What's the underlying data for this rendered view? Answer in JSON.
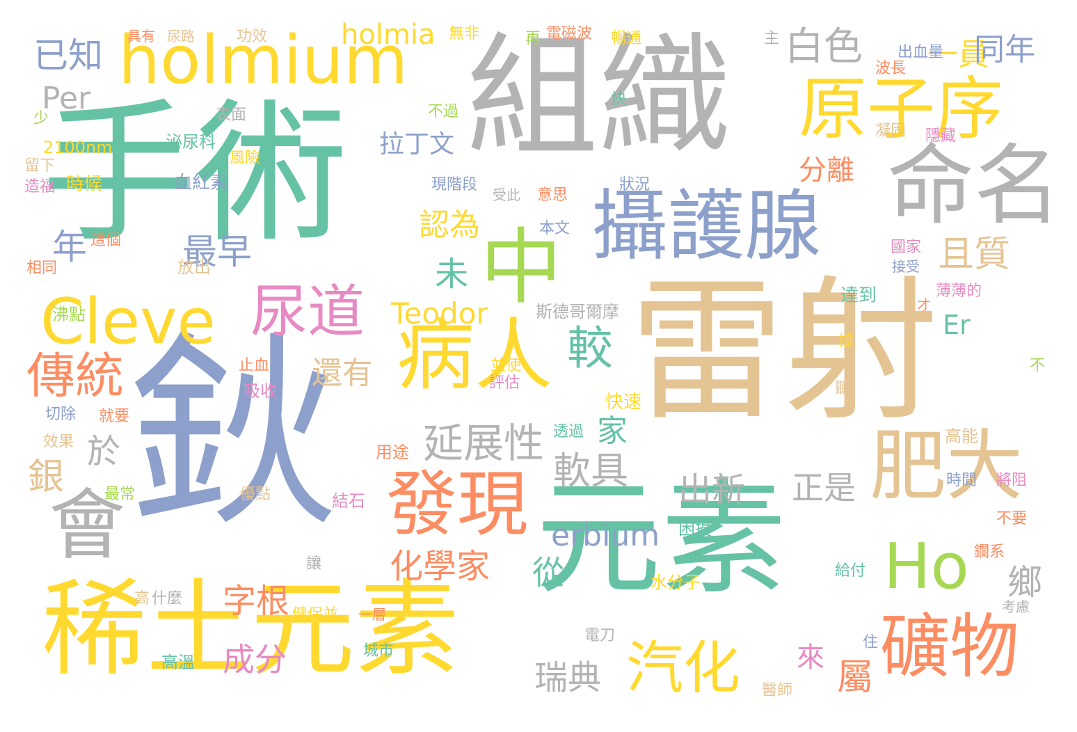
{
  "palette": {
    "teal": "#66c2a5",
    "orange": "#fc8d62",
    "blue": "#8da0cb",
    "pink": "#e78ac3",
    "green": "#a6d854",
    "yellow": "#ffd92f",
    "tan": "#e5c494",
    "gray": "#b3b3b3"
  },
  "words": [
    {
      "text": "雷射",
      "color": "tan"
    },
    {
      "text": "鈥",
      "color": "blue"
    },
    {
      "text": "手術",
      "color": "teal"
    },
    {
      "text": "組織",
      "color": "gray"
    },
    {
      "text": "元素",
      "color": "teal"
    },
    {
      "text": "稀土元素",
      "color": "yellow"
    },
    {
      "text": "攝護腺",
      "color": "blue"
    },
    {
      "text": "中",
      "color": "green"
    },
    {
      "text": "holmium",
      "color": "yellow"
    },
    {
      "text": "Cleve",
      "color": "yellow"
    },
    {
      "text": "命名",
      "color": "gray"
    },
    {
      "text": "原子序",
      "color": "yellow"
    },
    {
      "text": "病人",
      "color": "yellow"
    },
    {
      "text": "發現",
      "color": "orange"
    },
    {
      "text": "礦物",
      "color": "orange"
    },
    {
      "text": "Ho",
      "color": "green"
    },
    {
      "text": "肥大",
      "color": "tan"
    },
    {
      "text": "會",
      "color": "gray"
    },
    {
      "text": "尿道",
      "color": "pink"
    },
    {
      "text": "汽化",
      "color": "yellow"
    },
    {
      "text": "傳統",
      "color": "orange"
    },
    {
      "text": "白色",
      "color": "gray"
    },
    {
      "text": "一員",
      "color": "yellow"
    },
    {
      "text": "同年",
      "color": "blue"
    },
    {
      "text": "holmia",
      "color": "yellow"
    },
    {
      "text": "已知",
      "color": "blue"
    },
    {
      "text": "Per",
      "color": "gray"
    },
    {
      "text": "拉丁文",
      "color": "blue"
    },
    {
      "text": "分離",
      "color": "orange"
    },
    {
      "text": "認為",
      "color": "yellow"
    },
    {
      "text": "且質",
      "color": "tan"
    },
    {
      "text": "最早",
      "color": "blue"
    },
    {
      "text": "年",
      "color": "blue"
    },
    {
      "text": "未",
      "color": "teal"
    },
    {
      "text": "Teodor",
      "color": "yellow"
    },
    {
      "text": "較",
      "color": "teal"
    },
    {
      "text": "Er",
      "color": "teal"
    },
    {
      "text": "還有",
      "color": "tan"
    },
    {
      "text": "於",
      "color": "gray"
    },
    {
      "text": "延展性",
      "color": "gray"
    },
    {
      "text": "家",
      "color": "teal"
    },
    {
      "text": "軟具",
      "color": "gray"
    },
    {
      "text": "銀",
      "color": "tan"
    },
    {
      "text": "出新",
      "color": "gray"
    },
    {
      "text": "正是",
      "color": "gray"
    },
    {
      "text": "erbium",
      "color": "blue"
    },
    {
      "text": "化學家",
      "color": "orange"
    },
    {
      "text": "從",
      "color": "teal"
    },
    {
      "text": "鄉",
      "color": "gray"
    },
    {
      "text": "字根",
      "color": "orange"
    },
    {
      "text": "成分",
      "color": "pink"
    },
    {
      "text": "來",
      "color": "pink"
    },
    {
      "text": "瑞典",
      "color": "gray"
    },
    {
      "text": "屬",
      "color": "orange"
    },
    {
      "text": "斯德哥爾摩",
      "color": "gray"
    },
    {
      "text": "具有",
      "color": "orange"
    },
    {
      "text": "尿路",
      "color": "tan"
    },
    {
      "text": "功效",
      "color": "tan"
    },
    {
      "text": "無非",
      "color": "yellow"
    },
    {
      "text": "再",
      "color": "green"
    },
    {
      "text": "電磁波",
      "color": "orange"
    },
    {
      "text": "暢通",
      "color": "yellow"
    },
    {
      "text": "主",
      "color": "gray"
    },
    {
      "text": "出血量",
      "color": "blue"
    },
    {
      "text": "波長",
      "color": "orange"
    },
    {
      "text": "表面",
      "color": "gray"
    },
    {
      "text": "不過",
      "color": "green"
    },
    {
      "text": "快",
      "color": "teal"
    },
    {
      "text": "少",
      "color": "green"
    },
    {
      "text": "凝固",
      "color": "tan"
    },
    {
      "text": "隱藏",
      "color": "pink"
    },
    {
      "text": "2100nm",
      "color": "yellow"
    },
    {
      "text": "泌尿科",
      "color": "teal"
    },
    {
      "text": "風險",
      "color": "yellow"
    },
    {
      "text": "留下",
      "color": "tan"
    },
    {
      "text": "造福",
      "color": "pink"
    },
    {
      "text": "時候",
      "color": "yellow"
    },
    {
      "text": "血紅素",
      "color": "blue"
    },
    {
      "text": "現階段",
      "color": "blue"
    },
    {
      "text": "受此",
      "color": "gray"
    },
    {
      "text": "意思",
      "color": "orange"
    },
    {
      "text": "狀況",
      "color": "blue"
    },
    {
      "text": "本文",
      "color": "blue"
    },
    {
      "text": "這個",
      "color": "orange"
    },
    {
      "text": "國家",
      "color": "pink"
    },
    {
      "text": "相同",
      "color": "orange"
    },
    {
      "text": "接受",
      "color": "blue"
    },
    {
      "text": "放出",
      "color": "tan"
    },
    {
      "text": "薄薄的",
      "color": "pink"
    },
    {
      "text": "才",
      "color": "orange"
    },
    {
      "text": "達到",
      "color": "teal"
    },
    {
      "text": "沸點",
      "color": "green"
    },
    {
      "text": "擋",
      "color": "yellow"
    },
    {
      "text": "止血",
      "color": "orange"
    },
    {
      "text": "並使",
      "color": "yellow"
    },
    {
      "text": "評估",
      "color": "pink"
    },
    {
      "text": "不",
      "color": "green"
    },
    {
      "text": "吸收",
      "color": "pink"
    },
    {
      "text": "聽",
      "color": "tan"
    },
    {
      "text": "切除",
      "color": "blue"
    },
    {
      "text": "就要",
      "color": "orange"
    },
    {
      "text": "快速",
      "color": "yellow"
    },
    {
      "text": "透過",
      "color": "teal"
    },
    {
      "text": "效果",
      "color": "tan"
    },
    {
      "text": "高能",
      "color": "tan"
    },
    {
      "text": "用途",
      "color": "orange"
    },
    {
      "text": "時間",
      "color": "blue"
    },
    {
      "text": "將阻",
      "color": "pink"
    },
    {
      "text": "最常",
      "color": "green"
    },
    {
      "text": "優點",
      "color": "tan"
    },
    {
      "text": "結石",
      "color": "pink"
    },
    {
      "text": "困擾",
      "color": "teal"
    },
    {
      "text": "不要",
      "color": "orange"
    },
    {
      "text": "鑭系",
      "color": "orange"
    },
    {
      "text": "讓",
      "color": "gray"
    },
    {
      "text": "水分子",
      "color": "yellow"
    },
    {
      "text": "給付",
      "color": "teal"
    },
    {
      "text": "高",
      "color": "tan"
    },
    {
      "text": "什麼",
      "color": "gray"
    },
    {
      "text": "健保並",
      "color": "yellow"
    },
    {
      "text": "一層",
      "color": "orange"
    },
    {
      "text": "考慮",
      "color": "gray"
    },
    {
      "text": "電刀",
      "color": "gray"
    },
    {
      "text": "住",
      "color": "blue"
    },
    {
      "text": "城市",
      "color": "teal"
    },
    {
      "text": "高溫",
      "color": "teal"
    },
    {
      "text": "醫師",
      "color": "tan"
    }
  ]
}
